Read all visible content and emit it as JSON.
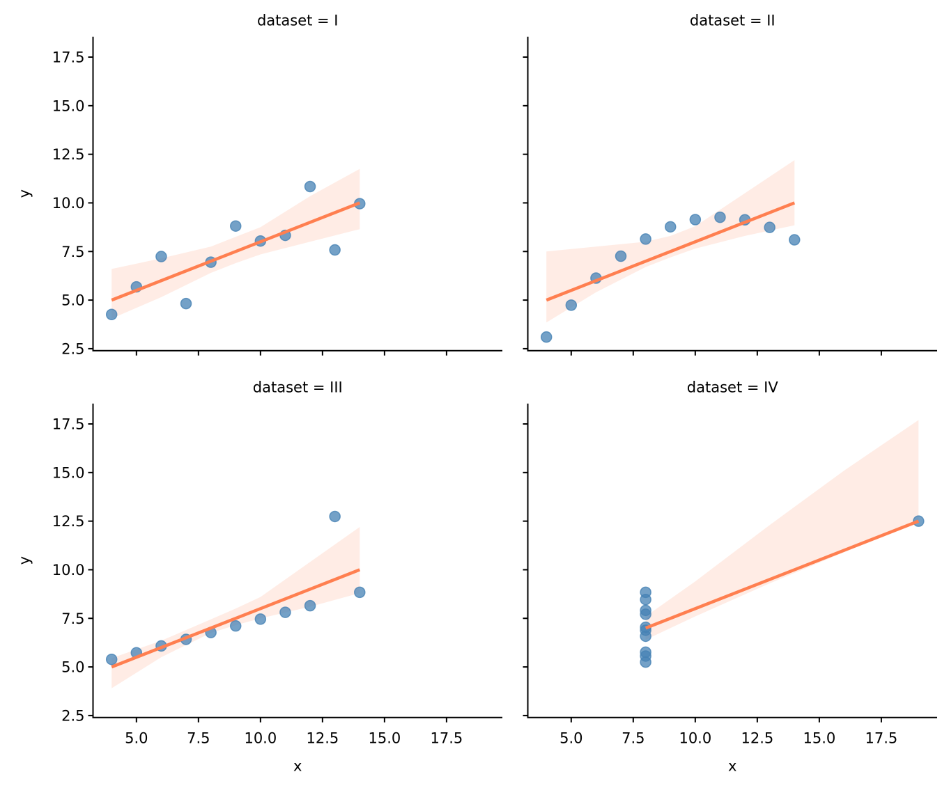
{
  "chart_data": {
    "type": "scatter",
    "layout": "facet-grid 2x2",
    "facet_variable": "dataset",
    "xlabel": "x",
    "ylabel": "y",
    "xlim": [
      3.25,
      19.75
    ],
    "ylim": [
      2.4,
      18.55
    ],
    "xticks": [
      5.0,
      7.5,
      10.0,
      12.5,
      15.0,
      17.5
    ],
    "yticks": [
      2.5,
      5.0,
      7.5,
      10.0,
      12.5,
      15.0,
      17.5
    ],
    "xtick_labels": [
      "5.0",
      "7.5",
      "10.0",
      "12.5",
      "15.0",
      "17.5"
    ],
    "ytick_labels": [
      "2.5",
      "5.0",
      "7.5",
      "10.0",
      "12.5",
      "15.0",
      "17.5"
    ],
    "grid": false,
    "colors": {
      "points": "#4682b4",
      "line": "#ff7f50",
      "band": "#ff7f50"
    },
    "panels": [
      {
        "title": "dataset = I",
        "x": [
          10,
          8,
          13,
          9,
          11,
          14,
          6,
          4,
          12,
          7,
          5
        ],
        "y": [
          8.04,
          6.95,
          7.58,
          8.81,
          8.33,
          9.96,
          7.24,
          4.26,
          10.84,
          4.82,
          5.68
        ],
        "fit": {
          "x": [
            4,
            14
          ],
          "y": [
            5.0,
            10.0
          ]
        },
        "ci_band": {
          "x": [
            4,
            6,
            8,
            9,
            10,
            12,
            14
          ],
          "lower": [
            4.05,
            5.15,
            6.4,
            6.9,
            7.35,
            8.0,
            8.65
          ],
          "upper": [
            6.6,
            7.15,
            7.75,
            8.25,
            8.75,
            10.35,
            11.75
          ]
        }
      },
      {
        "title": "dataset = II",
        "x": [
          10,
          8,
          13,
          9,
          11,
          14,
          6,
          4,
          12,
          7,
          5
        ],
        "y": [
          9.14,
          8.14,
          8.74,
          8.77,
          9.26,
          8.1,
          6.13,
          3.1,
          9.13,
          7.26,
          4.74
        ],
        "fit": {
          "x": [
            4,
            14
          ],
          "y": [
            5.0,
            10.0
          ]
        },
        "ci_band": {
          "x": [
            4,
            6,
            8,
            9,
            10,
            12,
            14
          ],
          "lower": [
            3.85,
            5.4,
            6.7,
            7.2,
            7.65,
            8.3,
            8.85
          ],
          "upper": [
            7.5,
            7.75,
            8.0,
            8.3,
            8.8,
            10.5,
            12.2
          ]
        }
      },
      {
        "title": "dataset = III",
        "x": [
          10,
          8,
          13,
          9,
          11,
          14,
          6,
          4,
          12,
          7,
          5
        ],
        "y": [
          7.46,
          6.77,
          12.74,
          7.11,
          7.81,
          8.84,
          6.08,
          5.39,
          8.15,
          6.42,
          5.73
        ],
        "fit": {
          "x": [
            4,
            14
          ],
          "y": [
            5.0,
            10.0
          ]
        },
        "ci_band": {
          "x": [
            4,
            6,
            8,
            9,
            10,
            12,
            14
          ],
          "lower": [
            3.9,
            5.5,
            6.75,
            7.15,
            7.5,
            8.1,
            8.8
          ],
          "upper": [
            5.45,
            6.35,
            7.45,
            8.0,
            8.6,
            10.4,
            12.2
          ]
        }
      },
      {
        "title": "dataset = IV",
        "x": [
          8,
          8,
          8,
          8,
          8,
          8,
          8,
          19,
          8,
          8,
          8
        ],
        "y": [
          6.58,
          5.76,
          7.71,
          8.84,
          8.47,
          7.04,
          5.25,
          12.5,
          5.56,
          7.91,
          6.89
        ],
        "fit": {
          "x": [
            8,
            19
          ],
          "y": [
            7.0,
            12.5
          ]
        },
        "ci_band": {
          "x": [
            8,
            10,
            13,
            16,
            19
          ],
          "lower": [
            6.4,
            7.6,
            9.3,
            10.9,
            12.5
          ],
          "upper": [
            7.6,
            9.4,
            12.3,
            15.1,
            17.7
          ]
        }
      }
    ]
  }
}
